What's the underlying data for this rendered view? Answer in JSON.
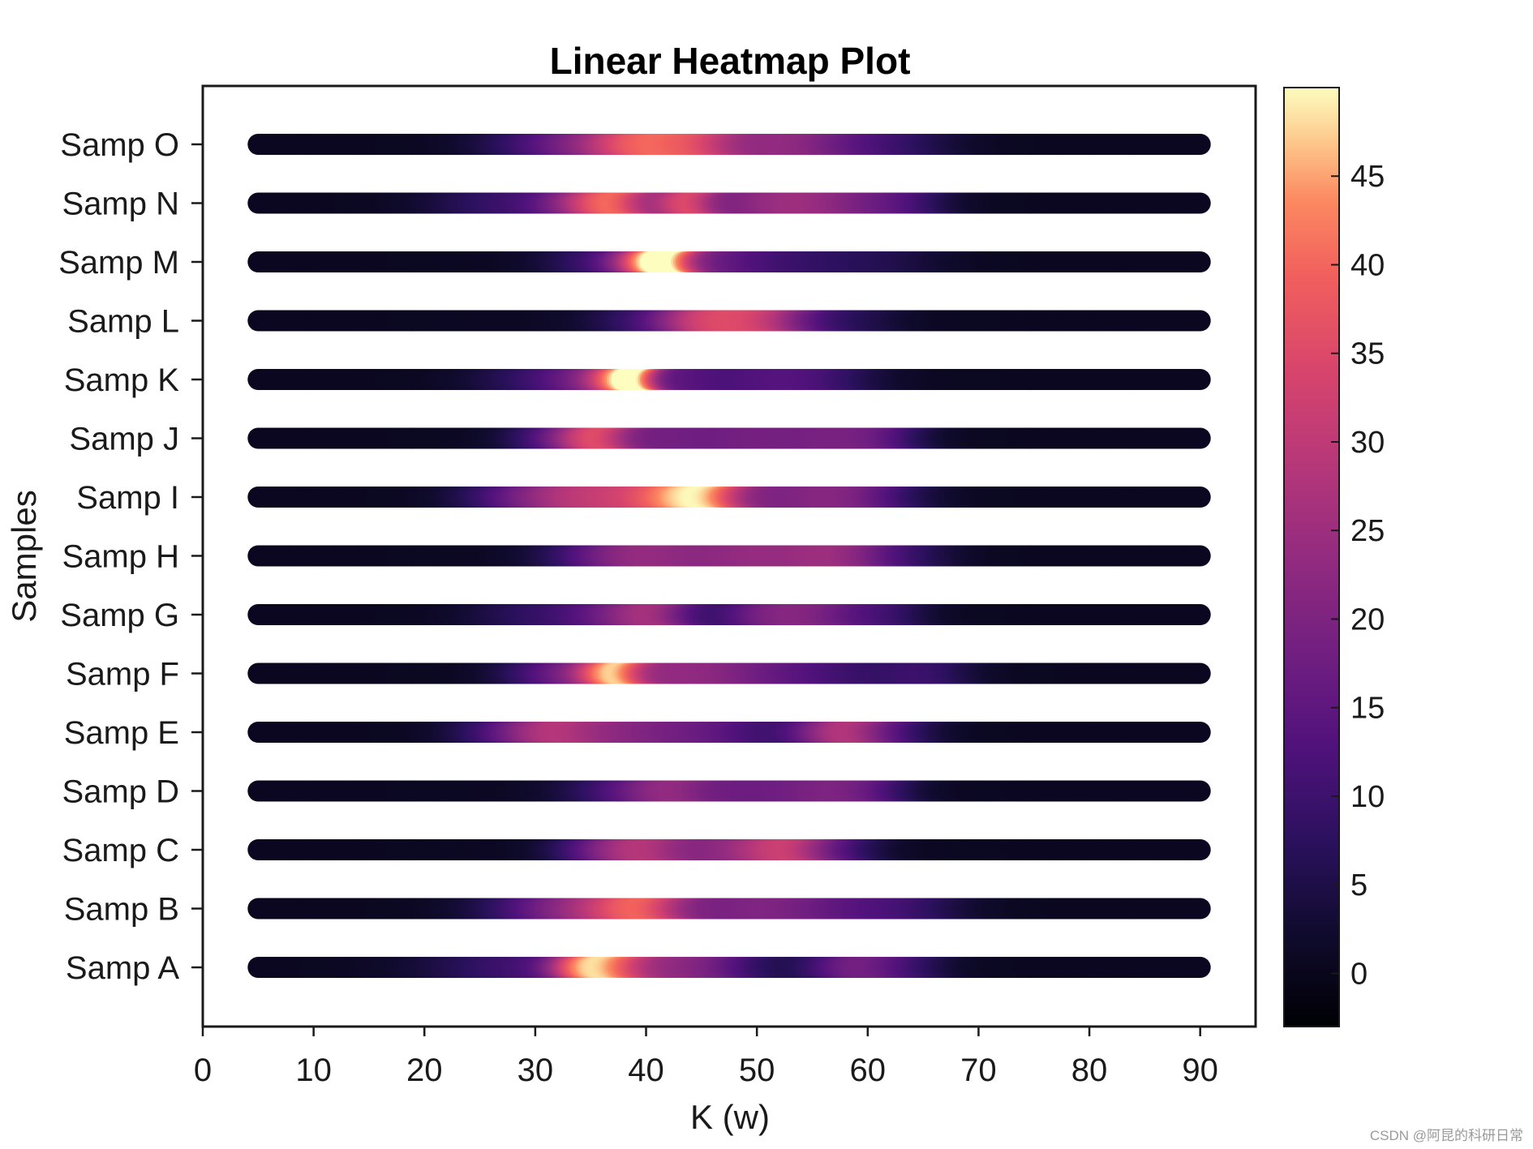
{
  "chart_data": {
    "type": "heatmap",
    "title": "Linear Heatmap Plot",
    "xlabel": "K (w)",
    "ylabel": "Samples",
    "xlim": [
      0,
      95
    ],
    "x_ticks": [
      0,
      10,
      20,
      30,
      40,
      50,
      60,
      70,
      80,
      90
    ],
    "x_start": 5,
    "x_end": 90,
    "x_step": 1,
    "colormap": "magma",
    "colorbar": {
      "min": -3,
      "max": 50,
      "ticks": [
        0,
        5,
        10,
        15,
        20,
        25,
        30,
        35,
        40,
        45
      ]
    },
    "grid": false,
    "samples": [
      {
        "name": "Samp A",
        "peaks": [
          [
            31,
            7,
            10
          ],
          [
            34.5,
            2,
            18
          ],
          [
            37,
            2.5,
            22
          ],
          [
            41,
            4,
            10
          ],
          [
            46,
            4,
            12
          ],
          [
            59,
            3,
            15
          ],
          [
            64,
            3,
            7
          ]
        ]
      },
      {
        "name": "Samp B",
        "peaks": [
          [
            33,
            5,
            14
          ],
          [
            40,
            3,
            22
          ],
          [
            36,
            4,
            8
          ],
          [
            48,
            6,
            12
          ],
          [
            55,
            6,
            10
          ],
          [
            64,
            4,
            6
          ]
        ]
      },
      {
        "name": "Samp C",
        "peaks": [
          [
            36,
            3,
            10
          ],
          [
            40,
            3,
            18
          ],
          [
            45,
            4,
            10
          ],
          [
            53,
            3,
            25
          ],
          [
            48,
            3,
            8
          ],
          [
            58,
            3,
            8
          ]
        ]
      },
      {
        "name": "Samp D",
        "peaks": [
          [
            39,
            4,
            10
          ],
          [
            43,
            3,
            14
          ],
          [
            49,
            3,
            10
          ],
          [
            56,
            4,
            16
          ],
          [
            61,
            3,
            7
          ]
        ]
      },
      {
        "name": "Samp E",
        "peaks": [
          [
            31,
            3,
            14
          ],
          [
            36,
            5,
            18
          ],
          [
            46,
            5,
            12
          ],
          [
            58,
            3,
            24
          ],
          [
            63,
            3,
            8
          ],
          [
            26,
            3,
            5
          ]
        ]
      },
      {
        "name": "Samp F",
        "peaks": [
          [
            31,
            3,
            8
          ],
          [
            36,
            3,
            15
          ],
          [
            37.5,
            1.8,
            22
          ],
          [
            43,
            5,
            14
          ],
          [
            52,
            8,
            12
          ],
          [
            66,
            3,
            6
          ]
        ]
      },
      {
        "name": "Samp G",
        "peaks": [
          [
            30,
            4,
            6
          ],
          [
            41,
            3,
            22
          ],
          [
            36,
            3,
            8
          ],
          [
            51,
            3,
            14
          ],
          [
            56,
            3,
            14
          ],
          [
            62,
            3,
            8
          ]
        ]
      },
      {
        "name": "Samp H",
        "peaks": [
          [
            37,
            4,
            12
          ],
          [
            42,
            4,
            14
          ],
          [
            47,
            3,
            8
          ],
          [
            51,
            3,
            14
          ],
          [
            56,
            3,
            15
          ],
          [
            60,
            3,
            12
          ],
          [
            65,
            3,
            5
          ]
        ]
      },
      {
        "name": "Samp I",
        "peaks": [
          [
            29,
            4,
            10
          ],
          [
            34,
            4,
            16
          ],
          [
            39,
            4,
            16
          ],
          [
            43,
            3,
            22
          ],
          [
            46,
            2.5,
            24
          ],
          [
            50,
            3,
            8
          ],
          [
            55,
            4,
            12
          ],
          [
            60,
            4,
            12
          ]
        ]
      },
      {
        "name": "Samp J",
        "peaks": [
          [
            32,
            3,
            10
          ],
          [
            36,
            2.5,
            28
          ],
          [
            42,
            3,
            12
          ],
          [
            49,
            4,
            14
          ],
          [
            57,
            4,
            14
          ],
          [
            62,
            3,
            8
          ]
        ]
      },
      {
        "name": "Samp K",
        "peaks": [
          [
            30,
            4,
            6
          ],
          [
            35,
            3,
            12
          ],
          [
            38,
            2,
            25
          ],
          [
            39.5,
            1.5,
            24
          ],
          [
            43,
            3,
            10
          ],
          [
            50,
            4,
            8
          ],
          [
            56,
            4,
            8
          ]
        ]
      },
      {
        "name": "Samp L",
        "peaks": [
          [
            39,
            3,
            5
          ],
          [
            45,
            3,
            24
          ],
          [
            50,
            3,
            22
          ],
          [
            54,
            3,
            10
          ],
          [
            60,
            3,
            4
          ]
        ]
      },
      {
        "name": "Samp M",
        "peaks": [
          [
            35,
            3,
            6
          ],
          [
            40,
            2.5,
            20
          ],
          [
            42,
            2,
            35
          ],
          [
            46,
            3,
            10
          ],
          [
            52,
            5,
            8
          ],
          [
            62,
            4,
            4
          ]
        ]
      },
      {
        "name": "Samp N",
        "peaks": [
          [
            28,
            5,
            8
          ],
          [
            35,
            3,
            18
          ],
          [
            38,
            2.5,
            24
          ],
          [
            44,
            2,
            24
          ],
          [
            50,
            5,
            14
          ],
          [
            57,
            5,
            16
          ],
          [
            64,
            3,
            6
          ]
        ]
      },
      {
        "name": "Samp O",
        "peaks": [
          [
            30,
            4,
            6
          ],
          [
            36,
            4,
            16
          ],
          [
            40,
            3,
            22
          ],
          [
            45,
            3,
            24
          ],
          [
            52,
            4,
            14
          ],
          [
            57,
            5,
            10
          ],
          [
            64,
            4,
            4
          ]
        ]
      }
    ]
  },
  "watermark": "CSDN @阿昆的科研日常"
}
